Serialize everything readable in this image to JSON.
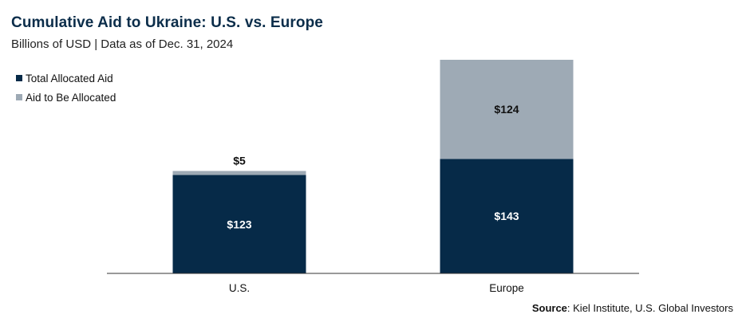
{
  "source": {
    "label": "Source",
    "text": ": Kiel Institute, U.S. Global Investors"
  },
  "colors": {
    "allocated": "#062a48",
    "to_be_allocated": "#9eaab5",
    "title": "#0b2d4a"
  },
  "chart_data": {
    "type": "bar",
    "stacked": true,
    "title": "Cumulative Aid to Ukraine: U.S. vs. Europe",
    "subtitle": "Billions of USD | Data as of Dec. 31, 2024",
    "categories": [
      "U.S.",
      "Europe"
    ],
    "series": [
      {
        "name": "Total Allocated Aid",
        "values": [
          123,
          143
        ],
        "labels": [
          "$123",
          "$143"
        ],
        "color": "#062a48"
      },
      {
        "name": "Aid to Be Allocated",
        "values": [
          5,
          124
        ],
        "labels": [
          "$5",
          "$124"
        ],
        "color": "#9eaab5"
      }
    ],
    "ylim": [
      0,
      267
    ],
    "grid": false,
    "legend": "top-left"
  }
}
